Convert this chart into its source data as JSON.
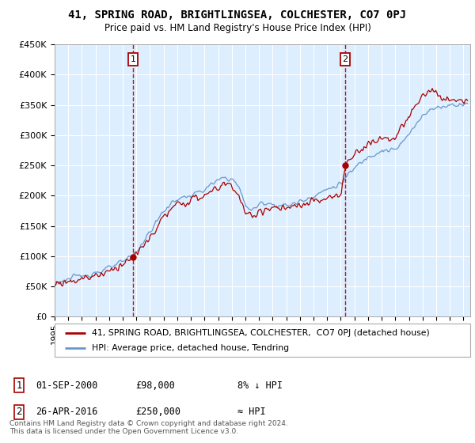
{
  "title": "41, SPRING ROAD, BRIGHTLINGSEA, COLCHESTER, CO7 0PJ",
  "subtitle": "Price paid vs. HM Land Registry's House Price Index (HPI)",
  "ylabel_ticks": [
    "£0",
    "£50K",
    "£100K",
    "£150K",
    "£200K",
    "£250K",
    "£300K",
    "£350K",
    "£400K",
    "£450K"
  ],
  "ylim": [
    0,
    450000
  ],
  "xlim_start": 1995.0,
  "xlim_end": 2025.5,
  "line1_color": "#aa0000",
  "line2_color": "#6699cc",
  "bg_fill_color": "#ddeeff",
  "marker1_x": 2000.75,
  "marker1_y": 98000,
  "marker2_x": 2016.33,
  "marker2_y": 250000,
  "legend_line1": "41, SPRING ROAD, BRIGHTLINGSEA, COLCHESTER,  CO7 0PJ (detached house)",
  "legend_line2": "HPI: Average price, detached house, Tendring",
  "footnote_copy": "Contains HM Land Registry data © Crown copyright and database right 2024.\nThis data is licensed under the Open Government Licence v3.0."
}
